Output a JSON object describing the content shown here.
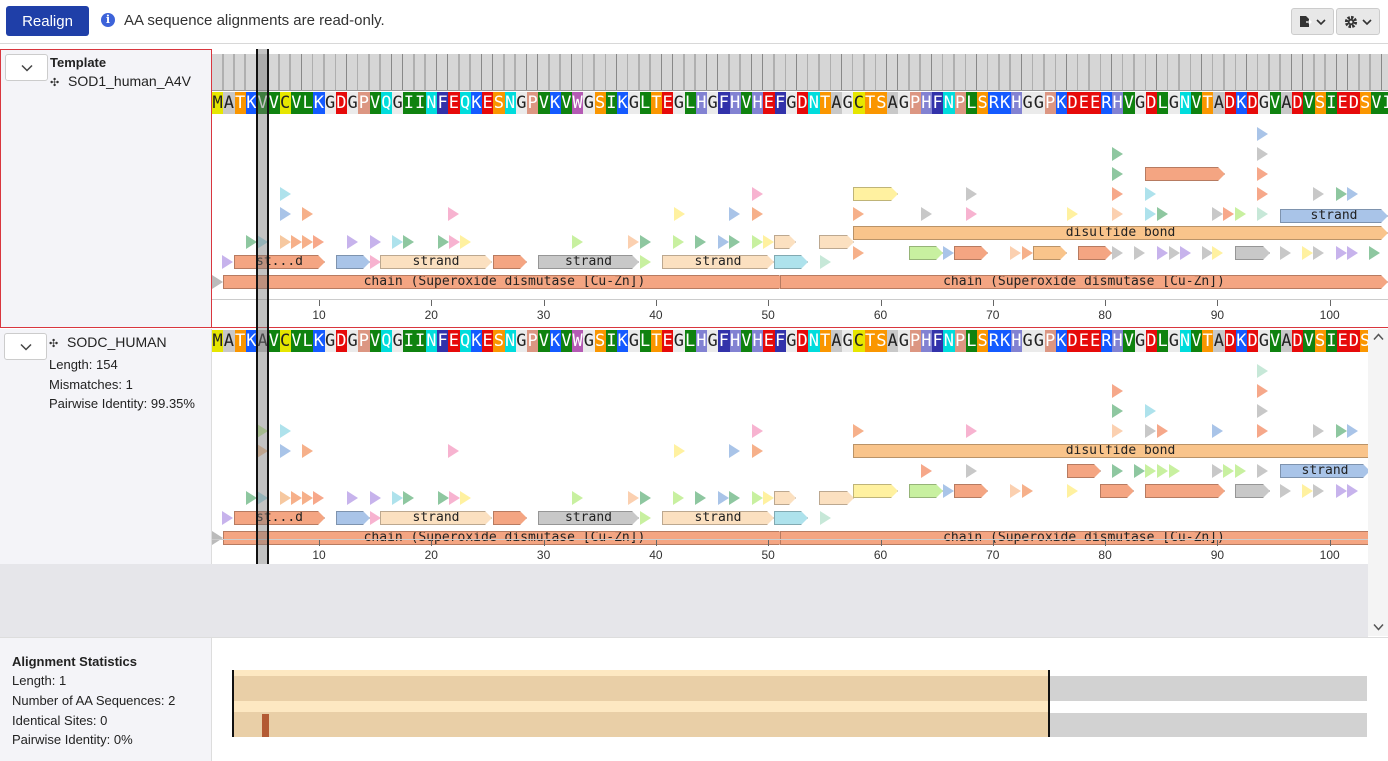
{
  "toolbar": {
    "realign_label": "Realign",
    "info_message": "AA sequence alignments are read-only.",
    "export_icon": "export-icon",
    "settings_icon": "gear-icon"
  },
  "template": {
    "heading": "Template",
    "name": "SOD1_human_A4V"
  },
  "sequence2": {
    "name": "SODC_HUMAN",
    "length": "Length: 154",
    "mismatches": "Mismatches: 1",
    "identity": "Pairwise Identity: 99.35%"
  },
  "sequences": {
    "template_residues": "MATKVVCVLKGDGPVQGIINFEQKESNGPVKVWGSIKGLTEGLHGFHVHEFGDNTAGCTSAGPHFNPLSRKHGGPKDEERHVGDLGNVTADKDGVADVSIEDSVI",
    "seq2_residues": "MATKAVCVLKGDGPVQGIINFEQKESNGPVKVWGSIKGLTEGLHGFHVHEFGDNTAGCTSAGPHFNPLSRKHGGPKDEERHVGDLGNVTADKDGVADVSIEDS"
  },
  "axis": {
    "ticks": [
      "10",
      "20",
      "30",
      "40",
      "50",
      "60",
      "70",
      "80",
      "90",
      "100"
    ]
  },
  "features": {
    "chain_label": "chain (Superoxide dismutase [Cu-Zn])",
    "strand_label": "strand",
    "disulfide_label": "disulfide bond",
    "truncated_label": "st...d"
  },
  "stats": {
    "title": "Alignment Statistics",
    "length": "Length: 1",
    "num_sequences": "Number of AA Sequences: 2",
    "identical_sites": "Identical Sites: 0",
    "pairwise_identity": "Pairwise Identity: 0%"
  },
  "colors": {
    "accent": "#1f3fa8",
    "selection_border": "#d9363e",
    "chain": "#f4a582",
    "strand": "#fbe0c0",
    "disulfide": "#f9c48b",
    "overview_fill": "#e9cfa7",
    "overview_band": "#fde8c2",
    "overview_bg": "#d2d2d2",
    "mismatch_mark": "#b35a33"
  }
}
